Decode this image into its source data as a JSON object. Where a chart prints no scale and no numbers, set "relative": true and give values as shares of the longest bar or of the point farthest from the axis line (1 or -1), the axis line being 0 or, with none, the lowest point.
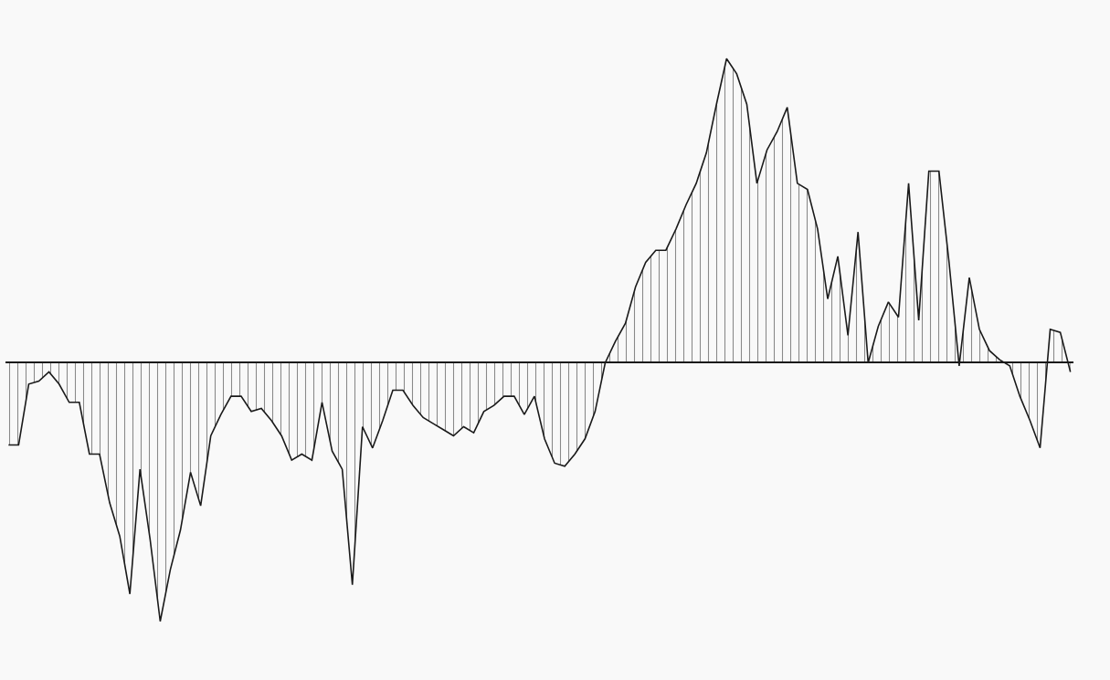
{
  "chart_data": {
    "type": "area",
    "relative": true,
    "grid": false,
    "legend": false,
    "marker": "none",
    "line_style": "solid",
    "categories": [
      null,
      null,
      null,
      null,
      null,
      null,
      null,
      null,
      null,
      null,
      null,
      null,
      null,
      null,
      null,
      null,
      null,
      null,
      null,
      null,
      null,
      null,
      null,
      null,
      null,
      null,
      null,
      null,
      null,
      null,
      null,
      null,
      null,
      null,
      null,
      null,
      null,
      null,
      null,
      null,
      null,
      null,
      null,
      null,
      null,
      null,
      null,
      null,
      null,
      null,
      null,
      null,
      null,
      null,
      null,
      null,
      null,
      null,
      null,
      null,
      null,
      null,
      null,
      null,
      null,
      null,
      null,
      null,
      null,
      null,
      null,
      null,
      null,
      null,
      null,
      null,
      null,
      null,
      null,
      null,
      null,
      null,
      null,
      null,
      null,
      null,
      null,
      null,
      null,
      null,
      null,
      null,
      null,
      null,
      null,
      null,
      null,
      null,
      null,
      null,
      null,
      null,
      null,
      null,
      null,
      null
    ],
    "series": [
      {
        "color": "#1a1a1a",
        "values": [
          -0.27,
          -0.27,
          -0.07,
          -0.06,
          -0.03,
          -0.07,
          -0.13,
          -0.13,
          -0.3,
          -0.3,
          -0.46,
          -0.57,
          -0.76,
          -0.35,
          -0.58,
          -0.85,
          -0.68,
          -0.55,
          -0.36,
          -0.47,
          -0.24,
          -0.17,
          -0.11,
          -0.11,
          -0.16,
          -0.15,
          -0.19,
          -0.24,
          -0.32,
          -0.3,
          -0.32,
          -0.13,
          -0.29,
          -0.35,
          -0.73,
          -0.21,
          -0.28,
          -0.19,
          -0.09,
          -0.09,
          -0.14,
          -0.18,
          -0.2,
          -0.22,
          -0.24,
          -0.21,
          -0.23,
          -0.16,
          -0.14,
          -0.11,
          -0.11,
          -0.17,
          -0.11,
          -0.25,
          -0.33,
          -0.34,
          -0.3,
          -0.25,
          -0.16,
          0,
          0.07,
          0.13,
          0.25,
          0.33,
          0.37,
          0.37,
          0.44,
          0.52,
          0.59,
          0.69,
          0.85,
          1,
          0.95,
          0.85,
          0.59,
          0.7,
          0.76,
          0.84,
          0.59,
          0.57,
          0.44,
          0.21,
          0.35,
          0.09,
          0.43,
          0.0,
          0.12,
          0.2,
          0.15,
          0.59,
          0.14,
          0.63,
          0.63,
          0.33,
          -0.01,
          0.28,
          0.11,
          0.04,
          0.01,
          -0.01,
          -0.11,
          -0.19,
          -0.28,
          0.11,
          0.1,
          -0.03
        ]
      }
    ]
  }
}
